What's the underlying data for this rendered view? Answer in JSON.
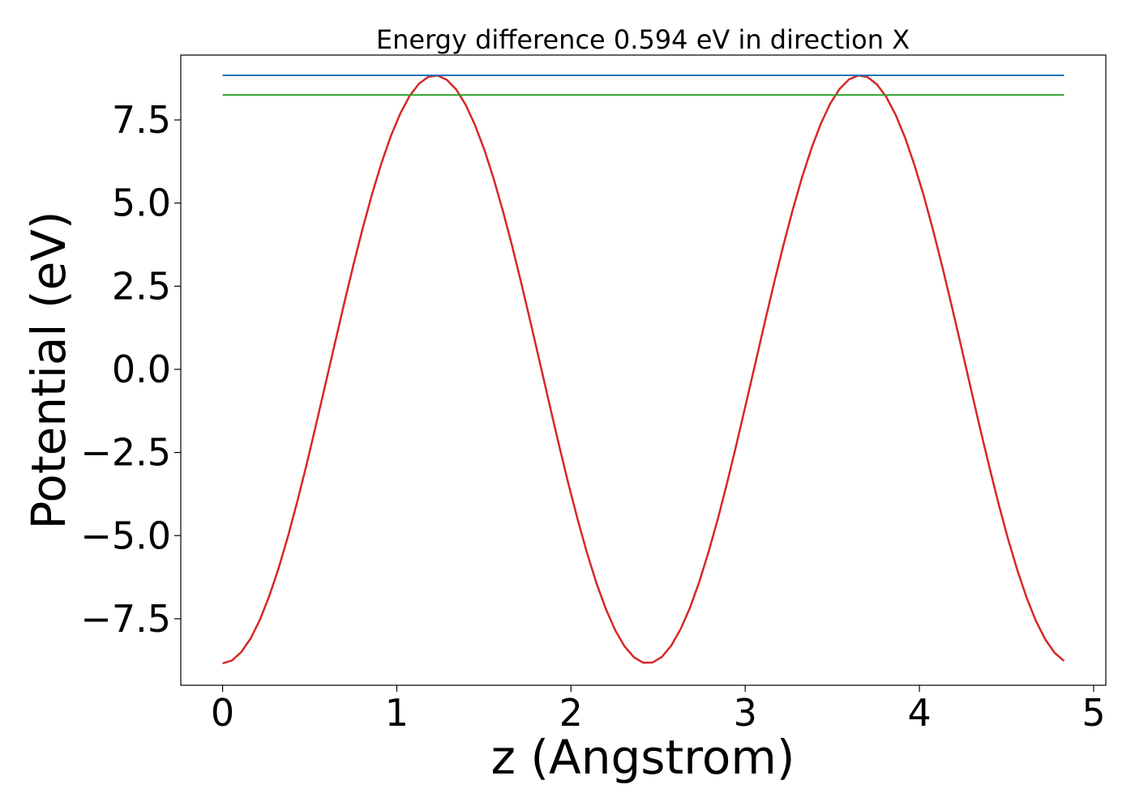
{
  "chart_data": {
    "type": "line",
    "title": "Energy difference 0.594 eV in direction X",
    "xlabel": "z (Angstrom)",
    "ylabel": "Potential (eV)",
    "xlim": [
      -0.24,
      5.07
    ],
    "ylim": [
      -9.5,
      9.45
    ],
    "xticks": [
      0,
      1,
      2,
      3,
      4,
      5
    ],
    "xtick_labels": [
      "0",
      "1",
      "2",
      "3",
      "4",
      "5"
    ],
    "yticks": [
      7.5,
      5.0,
      2.5,
      0.0,
      -2.5,
      -5.0,
      -7.5
    ],
    "ytick_labels": [
      "7.5",
      "5.0",
      "2.5",
      "0.0",
      "−2.5",
      "−5.0",
      "−7.5"
    ],
    "grid": false,
    "series": [
      {
        "role": "potential-curve",
        "color": "#d62728",
        "curve": "sinusoid",
        "amplitude": 8.84,
        "period": 2.44,
        "peak_z": [
          1.22,
          3.66
        ],
        "trough_z": [
          2.44
        ],
        "x_start": 0.0,
        "x_end": 4.83,
        "samples": 90
      },
      {
        "role": "max-level",
        "color": "#1f77b4",
        "y": 8.84,
        "x": [
          0.0,
          4.83
        ]
      },
      {
        "role": "min-level",
        "color": "#2ca02c",
        "y": 8.25,
        "x": [
          0.0,
          4.83
        ]
      }
    ]
  }
}
